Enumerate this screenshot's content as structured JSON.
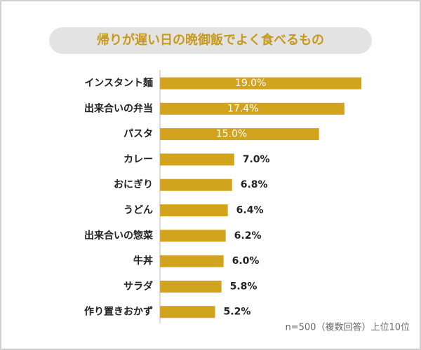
{
  "chart_data": {
    "type": "bar",
    "orientation": "horizontal",
    "title": "帰りが遅い日の晩御飯でよく食べるもの",
    "categories": [
      "インスタント麺",
      "出来合いの弁当",
      "パスタ",
      "カレー",
      "おにぎり",
      "うどん",
      "出来合いの惣菜",
      "牛丼",
      "サラダ",
      "作り置きおかず"
    ],
    "values": [
      19.0,
      17.4,
      15.0,
      7.0,
      6.8,
      6.4,
      6.2,
      6.0,
      5.8,
      5.2
    ],
    "value_labels": [
      "19.0%",
      "17.4%",
      "15.0%",
      "7.0%",
      "6.8%",
      "6.4%",
      "6.2%",
      "6.0%",
      "5.8%",
      "5.2%"
    ],
    "color": "#d2a31d",
    "note": "n=500（複数回答）上位10位"
  }
}
